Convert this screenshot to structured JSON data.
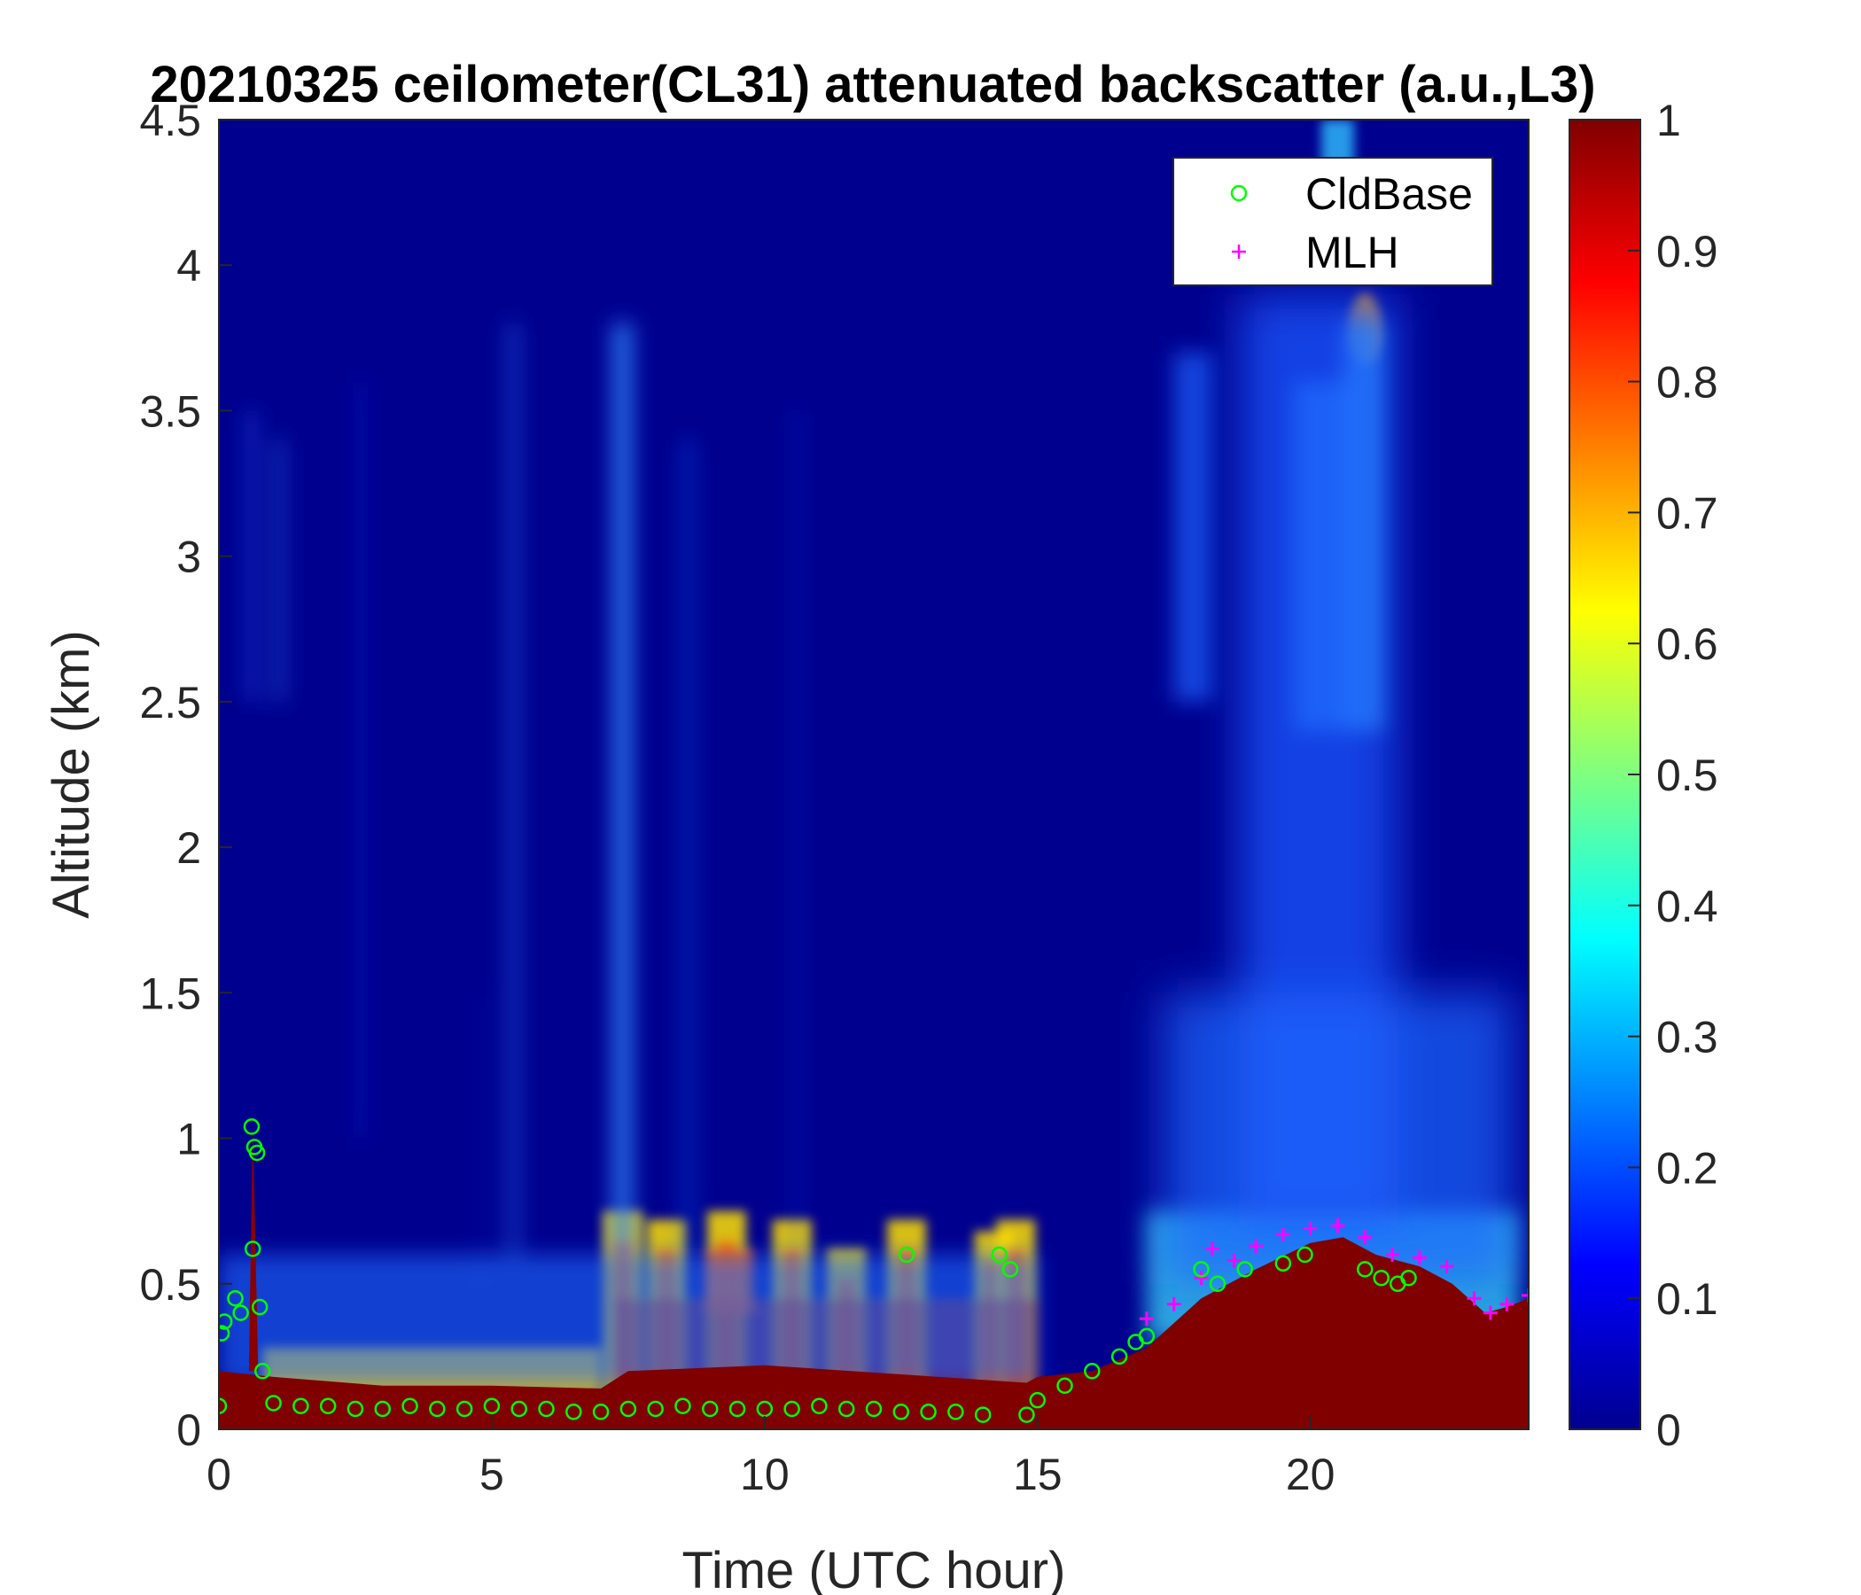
{
  "chart_data": {
    "type": "heatmap",
    "title": "20210325 ceilometer(CL31) attenuated backscatter (a.u.,L3)",
    "xlabel": "Time (UTC hour)",
    "ylabel": "Altitude (km)",
    "xlim": [
      0,
      24
    ],
    "ylim": [
      0,
      4.5
    ],
    "xticks": [
      0,
      5,
      10,
      15,
      20
    ],
    "yticks": [
      0,
      0.5,
      1,
      1.5,
      2,
      2.5,
      3,
      3.5,
      4,
      4.5
    ],
    "colorbar": {
      "min": 0,
      "max": 1,
      "ticks": [
        0,
        0.1,
        0.2,
        0.3,
        0.4,
        0.5,
        0.6,
        0.7,
        0.8,
        0.9,
        1
      ],
      "colormap": "jet"
    },
    "legend": {
      "placement": "top-right",
      "entries": [
        "CldBase",
        "MLH"
      ]
    },
    "colors": {
      "cldbase": "#00ff00",
      "mlh": "#ff00ff"
    },
    "series": [
      {
        "name": "CldBase",
        "marker": "circle",
        "x": [
          0.0,
          0.05,
          0.1,
          0.3,
          0.4,
          0.6,
          0.62,
          0.65,
          0.7,
          0.75,
          0.8,
          1,
          1.5,
          2,
          2.5,
          3,
          3.5,
          4,
          4.5,
          5,
          5.5,
          6,
          6.5,
          7,
          7.5,
          8,
          8.5,
          9,
          9.5,
          10,
          10.5,
          11,
          11.5,
          12,
          12.5,
          12.6,
          13,
          13.5,
          14,
          14.3,
          14.5,
          14.8,
          15,
          15.5,
          16,
          16.5,
          16.8,
          17,
          18,
          18.3,
          18.8,
          19.5,
          19.9,
          21,
          21.3,
          21.6,
          21.8
        ],
        "y": [
          0.08,
          0.33,
          0.37,
          0.45,
          0.4,
          1.04,
          0.62,
          0.97,
          0.95,
          0.42,
          0.2,
          0.09,
          0.08,
          0.08,
          0.07,
          0.07,
          0.08,
          0.07,
          0.07,
          0.08,
          0.07,
          0.07,
          0.06,
          0.06,
          0.07,
          0.07,
          0.08,
          0.07,
          0.07,
          0.07,
          0.07,
          0.08,
          0.07,
          0.07,
          0.06,
          0.6,
          0.06,
          0.06,
          0.05,
          0.6,
          0.55,
          0.05,
          0.1,
          0.15,
          0.2,
          0.25,
          0.3,
          0.32,
          0.55,
          0.5,
          0.55,
          0.57,
          0.6,
          0.55,
          0.52,
          0.5,
          0.52
        ]
      },
      {
        "name": "MLH",
        "marker": "plus",
        "x": [
          17.0,
          17.5,
          18.0,
          18.2,
          18.6,
          19.0,
          19.5,
          20.0,
          20.5,
          21.0,
          21.5,
          22.0,
          22.5,
          23.0,
          23.3,
          23.6,
          24.0
        ],
        "y": [
          0.38,
          0.43,
          0.52,
          0.62,
          0.58,
          0.63,
          0.67,
          0.69,
          0.7,
          0.66,
          0.6,
          0.59,
          0.56,
          0.45,
          0.4,
          0.43,
          0.46
        ]
      }
    ]
  }
}
